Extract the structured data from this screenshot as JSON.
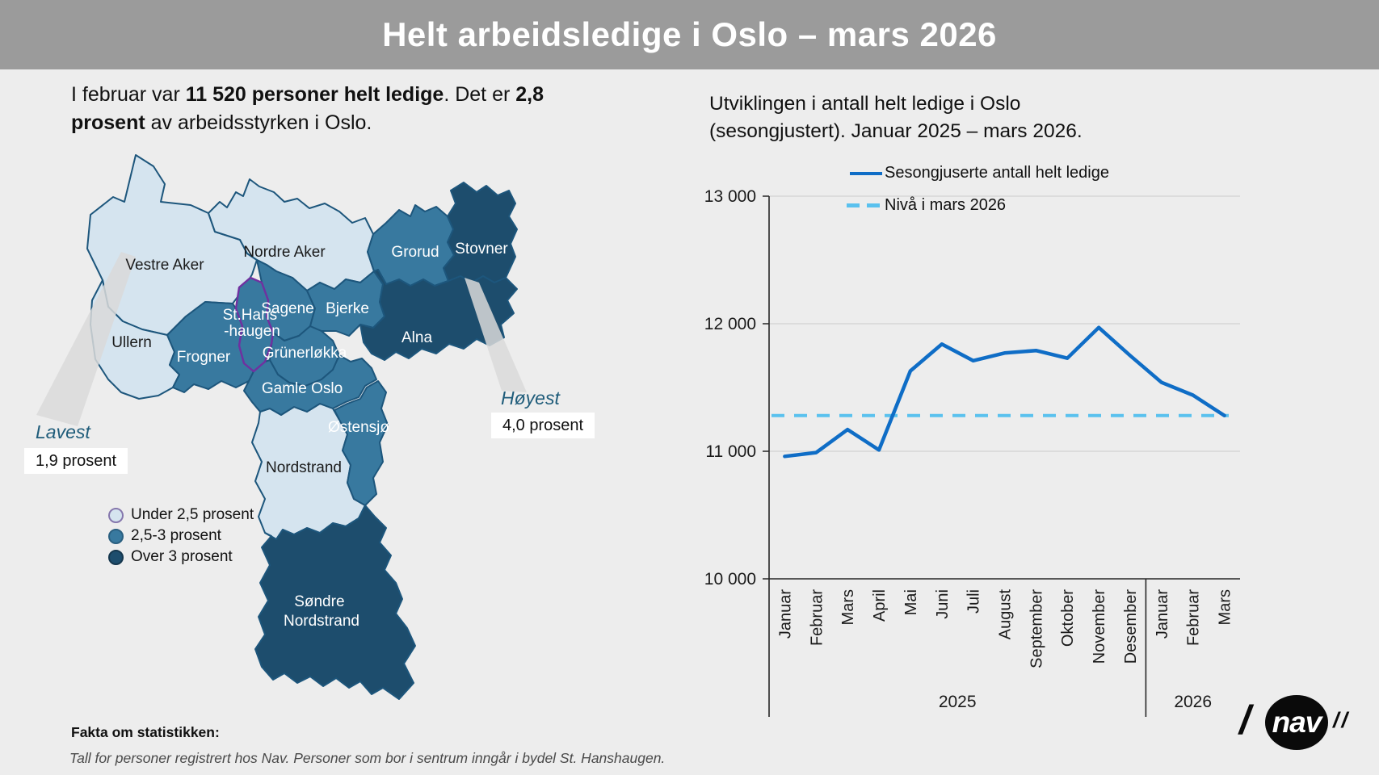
{
  "header": {
    "title": "Helt arbeidsledige i Oslo – mars 2026"
  },
  "intro": {
    "parts": [
      {
        "text": "I februar var ",
        "bold": false
      },
      {
        "text": "11 520 personer helt ledige",
        "bold": true
      },
      {
        "text": ". Det er ",
        "bold": false
      },
      {
        "text": "2,8 prosent",
        "bold": true
      },
      {
        "text": " av arbeidsstyrken i Oslo.",
        "bold": false
      }
    ]
  },
  "map": {
    "districts": [
      {
        "name": "Vestre Aker",
        "category": "low"
      },
      {
        "name": "Nordre Aker",
        "category": "low"
      },
      {
        "name": "Ullern",
        "category": "low"
      },
      {
        "name": "Frogner",
        "category": "mid"
      },
      {
        "name": "St.Hanshaugen",
        "category": "mid",
        "highlighted": true,
        "label_lines": [
          "St.Hans",
          "-haugen"
        ]
      },
      {
        "name": "Sagene",
        "category": "mid"
      },
      {
        "name": "Grünerløkka",
        "category": "mid"
      },
      {
        "name": "Bjerke",
        "category": "mid"
      },
      {
        "name": "Grorud",
        "category": "mid"
      },
      {
        "name": "Stovner",
        "category": "high"
      },
      {
        "name": "Alna",
        "category": "high"
      },
      {
        "name": "Gamle Oslo",
        "category": "mid"
      },
      {
        "name": "Østensjø",
        "category": "mid"
      },
      {
        "name": "Nordstrand",
        "category": "low"
      },
      {
        "name": "Søndre Nordstrand",
        "category": "high",
        "label_lines": [
          "Søndre",
          "Nordstrand"
        ]
      }
    ],
    "legend": [
      {
        "label": "Under 2,5 prosent",
        "category": "low",
        "color": "#d5e4ef"
      },
      {
        "label": "2,5-3 prosent",
        "category": "mid",
        "color": "#38799f"
      },
      {
        "label": "Over 3 prosent",
        "category": "high",
        "color": "#1d4d6d"
      }
    ],
    "callouts": {
      "lowest": {
        "title": "Lavest",
        "value": "1,9 prosent"
      },
      "highest": {
        "title": "Høyest",
        "value": "4,0 prosent"
      }
    }
  },
  "chart": {
    "title_lines": [
      "Utviklingen i antall helt ledige i Oslo",
      "(sesongjustert). Januar 2025 – mars 2026."
    ],
    "legend": [
      {
        "label": "Sesongjuserte antall helt ledige",
        "style": "solid",
        "color": "#0f6dc6"
      },
      {
        "label": "Nivå i mars 2026",
        "style": "dashed",
        "color": "#5ac1ee"
      }
    ]
  },
  "chart_data": {
    "type": "line",
    "title": "Utviklingen i antall helt ledige i Oslo (sesongjustert). Januar 2025 – mars 2026.",
    "categories": [
      "Januar",
      "Februar",
      "Mars",
      "April",
      "Mai",
      "Juni",
      "Juli",
      "August",
      "September",
      "Oktober",
      "November",
      "Desember",
      "Januar",
      "Februar",
      "Mars"
    ],
    "series": [
      {
        "name": "Sesongjuserte antall helt ledige",
        "color": "#0f6dc6",
        "values": [
          10960,
          10990,
          11170,
          11010,
          11630,
          11840,
          11710,
          11770,
          11790,
          11730,
          11970,
          11750,
          11540,
          11440,
          11280
        ]
      }
    ],
    "reference_line": {
      "name": "Nivå i mars 2026",
      "value": 11280,
      "color": "#5ac1ee"
    },
    "y_ticks": [
      {
        "label": "13 000",
        "value": 13000
      },
      {
        "label": "12 000",
        "value": 12000
      },
      {
        "label": "11 000",
        "value": 11000
      },
      {
        "label": "10 000",
        "value": 10000
      }
    ],
    "ylim": [
      10000,
      13000
    ],
    "grid": true,
    "legend_position": "top-right",
    "year_groups": [
      {
        "label": "2025",
        "months": 12
      },
      {
        "label": "2026",
        "months": 3
      }
    ]
  },
  "footer": {
    "heading": "Fakta om statistikken:",
    "note": "Tall for personer registrert hos Nav. Personer som bor i sentrum inngår i bydel St. Hanshaugen."
  },
  "logo": {
    "slash_left": "/",
    "text": "nav",
    "slashes_right": "//"
  },
  "colors": {
    "header_bg": "#9b9b9b",
    "low": "#d5e4ef",
    "mid": "#38799f",
    "high": "#1d4d6d",
    "border": "#1d567c",
    "highlight_border": "#7030a0",
    "series_line": "#0f6dc6",
    "reference_line": "#5ac1ee",
    "accent_text": "#1f5c7a"
  }
}
